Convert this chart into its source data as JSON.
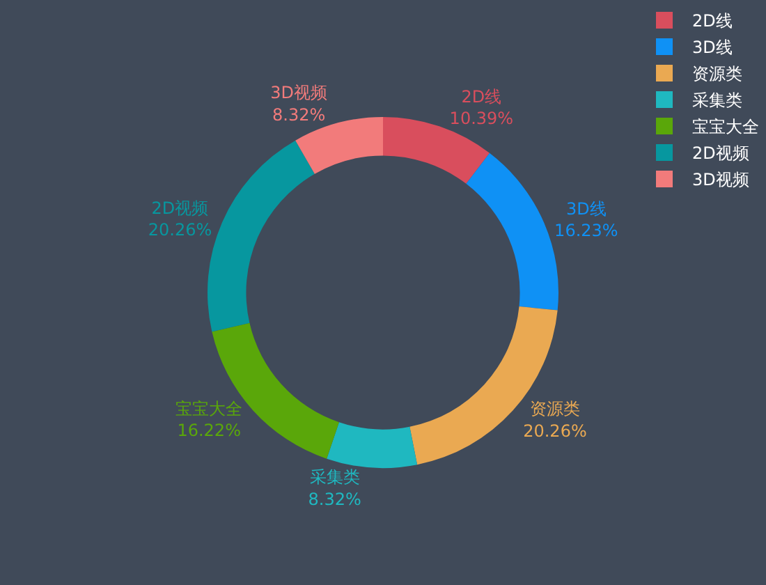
{
  "chart_data": {
    "type": "donut",
    "categories": [
      "2D线",
      "3D线",
      "资源类",
      "采集类",
      "宝宝大全",
      "2D视频",
      "3D视频"
    ],
    "values": [
      10.39,
      16.23,
      20.26,
      8.32,
      16.22,
      20.26,
      8.32
    ],
    "value_labels": [
      "10.39%",
      "16.23%",
      "20.26%",
      "8.32%",
      "16.22%",
      "20.26%",
      "8.32%"
    ],
    "colors": [
      "#d94e5d",
      "#0f91f5",
      "#eaa952",
      "#1fb8c0",
      "#5aa70a",
      "#07979f",
      "#f27b7b"
    ],
    "legend": "top right"
  }
}
